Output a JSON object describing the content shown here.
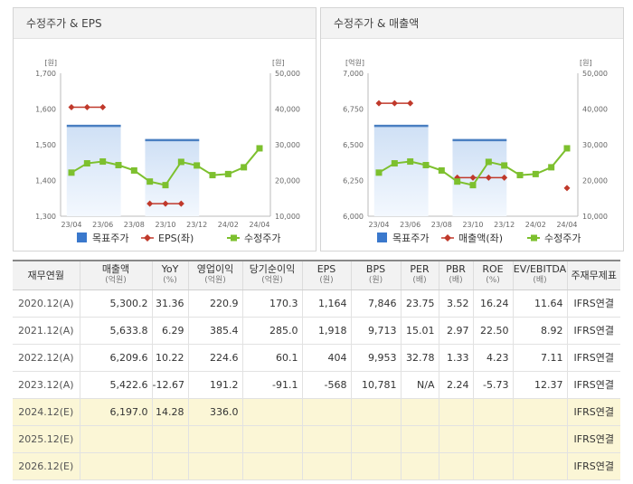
{
  "chart_data": [
    {
      "type": "line",
      "title": "수정주가 & EPS",
      "x_categories": [
        "23/04",
        "23/05",
        "23/06",
        "23/07",
        "23/08",
        "23/09",
        "23/10",
        "23/11",
        "23/12",
        "24/01",
        "24/02",
        "24/03",
        "24/04"
      ],
      "x_ticks": [
        "23/04",
        "23/06",
        "23/08",
        "23/10",
        "23/12",
        "24/02",
        "24/04"
      ],
      "left_unit": "[원]",
      "right_unit": "[원]",
      "left_axis": {
        "min": 1300,
        "max": 1700,
        "ticks": [
          "1,300",
          "1,400",
          "1,500",
          "1,600",
          "1,700"
        ]
      },
      "right_axis": {
        "min": 10000,
        "max": 50000,
        "ticks": [
          "10,000",
          "20,000",
          "30,000",
          "40,000",
          "50,000"
        ]
      },
      "series": [
        {
          "name": "목표주가",
          "axis": "right",
          "color": "#4a7fc1",
          "segments": [
            {
              "x_start": "23/04",
              "x_end": "23/07",
              "value": 35300
            },
            {
              "x_start": "23/09",
              "x_end": "23/12",
              "value": 31300
            }
          ]
        },
        {
          "name": "EPS(좌)",
          "axis": "left",
          "color": "#c0392b",
          "segments": [
            {
              "x_start": "23/04",
              "x_end": "23/06",
              "value": 1605
            },
            {
              "x_start": "23/09",
              "x_end": "23/11",
              "value": 1335
            }
          ]
        },
        {
          "name": "수정주가",
          "axis": "right",
          "color": "#7dc02e",
          "values": [
            22200,
            24800,
            25300,
            24300,
            22800,
            19700,
            18700,
            25200,
            24200,
            21500,
            21800,
            23700,
            29000
          ]
        }
      ]
    },
    {
      "type": "line",
      "title": "수정주가 & 매출액",
      "x_categories": [
        "23/04",
        "23/05",
        "23/06",
        "23/07",
        "23/08",
        "23/09",
        "23/10",
        "23/11",
        "23/12",
        "24/01",
        "24/02",
        "24/03",
        "24/04"
      ],
      "x_ticks": [
        "23/04",
        "23/06",
        "23/08",
        "23/10",
        "23/12",
        "24/02",
        "24/04"
      ],
      "left_unit": "[억원]",
      "right_unit": "[원]",
      "left_axis": {
        "min": 6000,
        "max": 7000,
        "ticks": [
          "6,000",
          "6,250",
          "6,500",
          "6,750",
          "7,000"
        ]
      },
      "right_axis": {
        "min": 10000,
        "max": 50000,
        "ticks": [
          "10,000",
          "20,000",
          "30,000",
          "40,000",
          "50,000"
        ]
      },
      "series": [
        {
          "name": "목표주가",
          "axis": "right",
          "color": "#4a7fc1",
          "segments": [
            {
              "x_start": "23/04",
              "x_end": "23/07",
              "value": 35300
            },
            {
              "x_start": "23/09",
              "x_end": "23/12",
              "value": 31300
            }
          ]
        },
        {
          "name": "매출액(좌)",
          "axis": "left",
          "color": "#c0392b",
          "segments": [
            {
              "x_start": "23/04",
              "x_end": "23/06",
              "value": 6790
            },
            {
              "x_start": "23/09",
              "x_end": "23/12",
              "value": 6270
            }
          ],
          "points": [
            {
              "x": "24/04",
              "value": 6197
            }
          ]
        },
        {
          "name": "수정주가",
          "axis": "right",
          "color": "#7dc02e",
          "values": [
            22200,
            24800,
            25300,
            24300,
            22800,
            19700,
            18700,
            25200,
            24200,
            21500,
            21800,
            23700,
            29000
          ]
        }
      ]
    }
  ],
  "table": {
    "headers": [
      {
        "label": "재무연월",
        "unit": ""
      },
      {
        "label": "매출액",
        "unit": "(억원)"
      },
      {
        "label": "YoY",
        "unit": "(%)"
      },
      {
        "label": "영업이익",
        "unit": "(억원)"
      },
      {
        "label": "당기순이익",
        "unit": "(억원)"
      },
      {
        "label": "EPS",
        "unit": "(원)"
      },
      {
        "label": "BPS",
        "unit": "(원)"
      },
      {
        "label": "PER",
        "unit": "(배)"
      },
      {
        "label": "PBR",
        "unit": "(배)"
      },
      {
        "label": "ROE",
        "unit": "(%)"
      },
      {
        "label": "EV/EBITDA",
        "unit": "(배)"
      },
      {
        "label": "주재무제표",
        "unit": ""
      }
    ],
    "rows": [
      {
        "estimate": false,
        "cells": [
          "2020.12(A)",
          "5,300.2",
          "31.36",
          "220.9",
          "170.3",
          "1,164",
          "7,846",
          "23.75",
          "3.52",
          "16.24",
          "11.64",
          "IFRS연결"
        ]
      },
      {
        "estimate": false,
        "cells": [
          "2021.12(A)",
          "5,633.8",
          "6.29",
          "385.4",
          "285.0",
          "1,918",
          "9,713",
          "15.01",
          "2.97",
          "22.50",
          "8.92",
          "IFRS연결"
        ]
      },
      {
        "estimate": false,
        "cells": [
          "2022.12(A)",
          "6,209.6",
          "10.22",
          "224.6",
          "60.1",
          "404",
          "9,953",
          "32.78",
          "1.33",
          "4.23",
          "7.11",
          "IFRS연결"
        ]
      },
      {
        "estimate": false,
        "cells": [
          "2023.12(A)",
          "5,422.6",
          "-12.67",
          "191.2",
          "-91.1",
          "-568",
          "10,781",
          "N/A",
          "2.24",
          "-5.73",
          "12.37",
          "IFRS연결"
        ]
      },
      {
        "estimate": true,
        "cells": [
          "2024.12(E)",
          "6,197.0",
          "14.28",
          "336.0",
          "",
          "",
          "",
          "",
          "",
          "",
          "",
          "IFRS연결"
        ]
      },
      {
        "estimate": true,
        "cells": [
          "2025.12(E)",
          "",
          "",
          "",
          "",
          "",
          "",
          "",
          "",
          "",
          "",
          "IFRS연결"
        ]
      },
      {
        "estimate": true,
        "cells": [
          "2026.12(E)",
          "",
          "",
          "",
          "",
          "",
          "",
          "",
          "",
          "",
          "",
          "IFRS연결"
        ]
      }
    ]
  }
}
